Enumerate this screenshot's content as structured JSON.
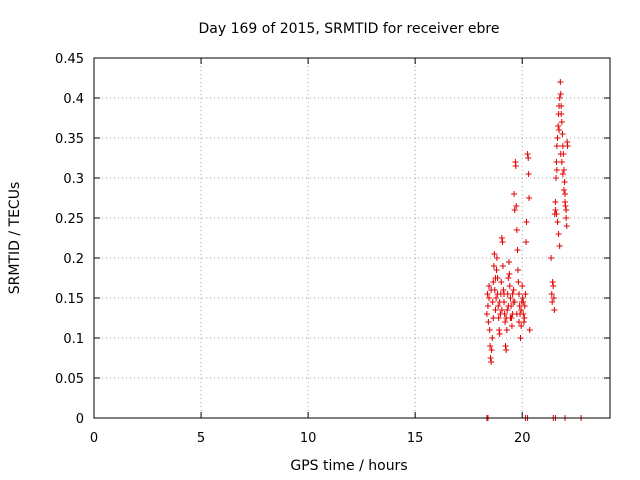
{
  "chart_data": {
    "type": "scatter",
    "title": "Day 169 of 2015, SRMTID for receiver ebre",
    "xlabel": "GPS time / hours",
    "ylabel": "SRMTID / TECUs",
    "xlim": [
      0,
      24.1
    ],
    "ylim": [
      0,
      0.45
    ],
    "xticks": [
      0,
      5,
      10,
      15,
      20
    ],
    "xtick_labels": [
      "0",
      "5",
      "10",
      "15",
      "20"
    ],
    "yticks": [
      0,
      0.05,
      0.1,
      0.15,
      0.2,
      0.25,
      0.3,
      0.35,
      0.4,
      0.45
    ],
    "ytick_labels": [
      "0",
      "0.05",
      "0.1",
      "0.15",
      "0.2",
      "0.25",
      "0.3",
      "0.35",
      "0.4",
      "0.45"
    ],
    "grid": true,
    "marker": "+",
    "color": "#e00000",
    "series": [
      {
        "name": "SRMTID",
        "points": [
          [
            18.35,
            0.0
          ],
          [
            18.4,
            0.0
          ],
          [
            20.15,
            0.0
          ],
          [
            20.25,
            0.0
          ],
          [
            21.45,
            0.0
          ],
          [
            21.55,
            0.0
          ],
          [
            22.0,
            0.0
          ],
          [
            22.75,
            0.0
          ],
          [
            18.35,
            0.13
          ],
          [
            18.38,
            0.155
          ],
          [
            18.4,
            0.14
          ],
          [
            18.42,
            0.12
          ],
          [
            18.45,
            0.165
          ],
          [
            18.48,
            0.11
          ],
          [
            18.5,
            0.09
          ],
          [
            18.52,
            0.075
          ],
          [
            18.55,
            0.07
          ],
          [
            18.57,
            0.085
          ],
          [
            18.6,
            0.1
          ],
          [
            18.62,
            0.145
          ],
          [
            18.65,
            0.17
          ],
          [
            18.68,
            0.19
          ],
          [
            18.7,
            0.205
          ],
          [
            18.72,
            0.16
          ],
          [
            18.75,
            0.135
          ],
          [
            18.78,
            0.15
          ],
          [
            18.8,
            0.185
          ],
          [
            18.82,
            0.2
          ],
          [
            18.85,
            0.175
          ],
          [
            18.88,
            0.14
          ],
          [
            18.9,
            0.125
          ],
          [
            18.92,
            0.11
          ],
          [
            18.95,
            0.105
          ],
          [
            18.98,
            0.13
          ],
          [
            19.0,
            0.155
          ],
          [
            19.02,
            0.17
          ],
          [
            19.05,
            0.225
          ],
          [
            19.08,
            0.22
          ],
          [
            19.1,
            0.19
          ],
          [
            19.12,
            0.16
          ],
          [
            19.15,
            0.145
          ],
          [
            19.18,
            0.13
          ],
          [
            19.2,
            0.12
          ],
          [
            19.22,
            0.09
          ],
          [
            19.25,
            0.085
          ],
          [
            19.28,
            0.11
          ],
          [
            19.3,
            0.135
          ],
          [
            19.32,
            0.155
          ],
          [
            19.35,
            0.175
          ],
          [
            19.38,
            0.195
          ],
          [
            19.4,
            0.18
          ],
          [
            19.42,
            0.165
          ],
          [
            19.45,
            0.15
          ],
          [
            19.48,
            0.14
          ],
          [
            19.5,
            0.125
          ],
          [
            19.52,
            0.115
          ],
          [
            19.55,
            0.13
          ],
          [
            19.58,
            0.145
          ],
          [
            19.6,
            0.16
          ],
          [
            19.62,
            0.28
          ],
          [
            19.65,
            0.26
          ],
          [
            19.68,
            0.32
          ],
          [
            19.7,
            0.315
          ],
          [
            19.72,
            0.265
          ],
          [
            19.75,
            0.235
          ],
          [
            19.78,
            0.21
          ],
          [
            19.8,
            0.185
          ],
          [
            19.82,
            0.17
          ],
          [
            19.85,
            0.155
          ],
          [
            19.88,
            0.14
          ],
          [
            19.9,
            0.13
          ],
          [
            19.92,
            0.1
          ],
          [
            19.95,
            0.115
          ],
          [
            19.98,
            0.145
          ],
          [
            20.0,
            0.165
          ],
          [
            20.02,
            0.15
          ],
          [
            20.05,
            0.13
          ],
          [
            20.08,
            0.12
          ],
          [
            20.1,
            0.125
          ],
          [
            20.12,
            0.14
          ],
          [
            20.15,
            0.155
          ],
          [
            20.18,
            0.22
          ],
          [
            20.2,
            0.245
          ],
          [
            20.25,
            0.33
          ],
          [
            20.28,
            0.325
          ],
          [
            20.3,
            0.305
          ],
          [
            20.32,
            0.275
          ],
          [
            20.35,
            0.11
          ],
          [
            18.45,
            0.15
          ],
          [
            18.55,
            0.16
          ],
          [
            18.65,
            0.125
          ],
          [
            18.75,
            0.175
          ],
          [
            18.85,
            0.155
          ],
          [
            18.95,
            0.145
          ],
          [
            19.05,
            0.135
          ],
          [
            19.15,
            0.155
          ],
          [
            19.25,
            0.125
          ],
          [
            19.35,
            0.14
          ],
          [
            19.45,
            0.125
          ],
          [
            19.55,
            0.155
          ],
          [
            19.65,
            0.145
          ],
          [
            19.75,
            0.13
          ],
          [
            19.85,
            0.12
          ],
          [
            19.95,
            0.135
          ],
          [
            20.05,
            0.145
          ],
          [
            21.35,
            0.2
          ],
          [
            21.38,
            0.155
          ],
          [
            21.4,
            0.145
          ],
          [
            21.42,
            0.17
          ],
          [
            21.45,
            0.165
          ],
          [
            21.48,
            0.15
          ],
          [
            21.5,
            0.135
          ],
          [
            21.52,
            0.255
          ],
          [
            21.55,
            0.27
          ],
          [
            21.58,
            0.3
          ],
          [
            21.6,
            0.32
          ],
          [
            21.62,
            0.34
          ],
          [
            21.65,
            0.35
          ],
          [
            21.68,
            0.365
          ],
          [
            21.7,
            0.38
          ],
          [
            21.72,
            0.39
          ],
          [
            21.75,
            0.4
          ],
          [
            21.78,
            0.42
          ],
          [
            21.8,
            0.405
          ],
          [
            21.82,
            0.39
          ],
          [
            21.85,
            0.37
          ],
          [
            21.88,
            0.355
          ],
          [
            21.9,
            0.34
          ],
          [
            21.92,
            0.33
          ],
          [
            21.95,
            0.31
          ],
          [
            21.98,
            0.295
          ],
          [
            22.0,
            0.28
          ],
          [
            22.02,
            0.265
          ],
          [
            22.05,
            0.25
          ],
          [
            22.08,
            0.24
          ],
          [
            22.1,
            0.345
          ],
          [
            22.12,
            0.34
          ],
          [
            21.55,
            0.26
          ],
          [
            21.6,
            0.255
          ],
          [
            21.65,
            0.245
          ],
          [
            21.7,
            0.23
          ],
          [
            21.75,
            0.215
          ],
          [
            21.8,
            0.33
          ],
          [
            21.85,
            0.32
          ],
          [
            21.9,
            0.305
          ],
          [
            21.95,
            0.285
          ],
          [
            22.0,
            0.27
          ],
          [
            22.05,
            0.26
          ],
          [
            21.62,
            0.31
          ],
          [
            21.72,
            0.36
          ],
          [
            21.82,
            0.38
          ]
        ]
      }
    ]
  }
}
